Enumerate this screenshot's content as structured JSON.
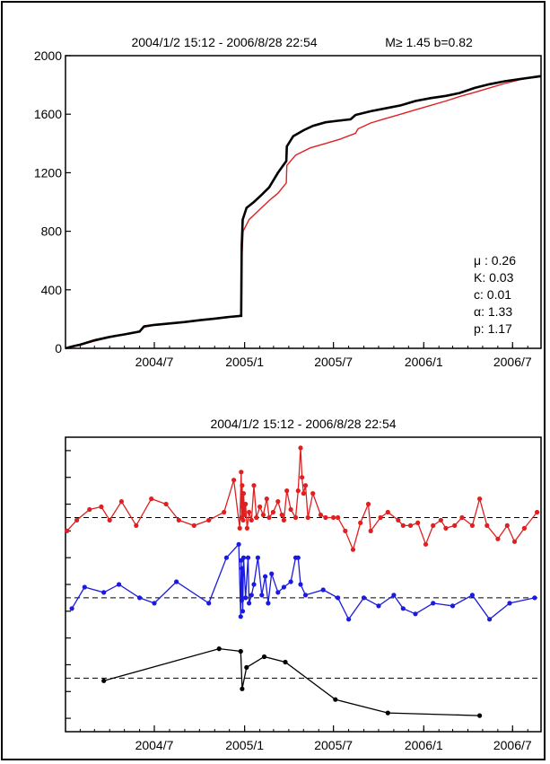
{
  "chart_data": [
    {
      "type": "line",
      "title": "2004/1/2 15:12  -  2006/8/28 22:54",
      "subtitle": "M≥ 1.45  b=0.82",
      "xlabel": "",
      "ylabel": "",
      "xlim": [
        "2004/1/2",
        "2006/8/28"
      ],
      "ylim": [
        0,
        2000
      ],
      "x_ticks": [
        "2004/7",
        "2005/1",
        "2005/7",
        "2006/1",
        "2006/7"
      ],
      "y_ticks": [
        "0",
        "400",
        "800",
        "1200",
        "1600",
        "2000"
      ],
      "grid": false,
      "colors": {
        "observed": "#000000",
        "model": "#e02020"
      },
      "annotations": [
        "μ : 0.26",
        "K: 0.03",
        "c: 0.01",
        "α: 1.33",
        "p: 1.17"
      ],
      "series": [
        {
          "color": "#000000",
          "points": [
            [
              "2004/1/2",
              0
            ],
            [
              "2004/1/15",
              12
            ],
            [
              "2004/2/1",
              25
            ],
            [
              "2004/3/1",
              55
            ],
            [
              "2004/4/1",
              78
            ],
            [
              "2004/5/1",
              95
            ],
            [
              "2004/6/1",
              115
            ],
            [
              "2004/6/10",
              150
            ],
            [
              "2004/7/1",
              160
            ],
            [
              "2004/8/1",
              170
            ],
            [
              "2004/9/1",
              180
            ],
            [
              "2004/10/1",
              192
            ],
            [
              "2004/11/1",
              203
            ],
            [
              "2004/12/1",
              215
            ],
            [
              "2004/12/25",
              222
            ],
            [
              "2004/12/26",
              700
            ],
            [
              "2004/12/28",
              880
            ],
            [
              "2005/1/5",
              960
            ],
            [
              "2005/1/20",
              1000
            ],
            [
              "2005/2/5",
              1050
            ],
            [
              "2005/2/20",
              1100
            ],
            [
              "2005/3/10",
              1200
            ],
            [
              "2005/3/27",
              1280
            ],
            [
              "2005/3/28",
              1380
            ],
            [
              "2005/4/10",
              1450
            ],
            [
              "2005/5/1",
              1490
            ],
            [
              "2005/5/20",
              1520
            ],
            [
              "2005/6/15",
              1545
            ],
            [
              "2005/7/10",
              1555
            ],
            [
              "2005/8/5",
              1565
            ],
            [
              "2005/8/15",
              1595
            ],
            [
              "2005/9/15",
              1620
            ],
            [
              "2005/10/15",
              1640
            ],
            [
              "2005/11/15",
              1660
            ],
            [
              "2005/12/15",
              1690
            ],
            [
              "2006/1/15",
              1710
            ],
            [
              "2006/2/15",
              1725
            ],
            [
              "2006/3/15",
              1745
            ],
            [
              "2006/4/15",
              1780
            ],
            [
              "2006/5/15",
              1805
            ],
            [
              "2006/6/15",
              1825
            ],
            [
              "2006/7/15",
              1840
            ],
            [
              "2006/8/28",
              1860
            ]
          ]
        },
        {
          "color": "#e02020",
          "points": [
            [
              "2004/1/2",
              0
            ],
            [
              "2004/2/1",
              22
            ],
            [
              "2004/3/1",
              50
            ],
            [
              "2004/4/1",
              75
            ],
            [
              "2004/5/1",
              95
            ],
            [
              "2004/6/1",
              115
            ],
            [
              "2004/6/10",
              145
            ],
            [
              "2004/7/1",
              158
            ],
            [
              "2004/8/1",
              168
            ],
            [
              "2004/9/1",
              180
            ],
            [
              "2004/10/1",
              190
            ],
            [
              "2004/11/1",
              202
            ],
            [
              "2004/12/1",
              215
            ],
            [
              "2004/12/25",
              225
            ],
            [
              "2004/12/26",
              600
            ],
            [
              "2004/12/29",
              800
            ],
            [
              "2005/1/10",
              880
            ],
            [
              "2005/2/1",
              950
            ],
            [
              "2005/2/20",
              1010
            ],
            [
              "2005/3/10",
              1060
            ],
            [
              "2005/3/27",
              1130
            ],
            [
              "2005/3/28",
              1250
            ],
            [
              "2005/4/15",
              1320
            ],
            [
              "2005/5/15",
              1370
            ],
            [
              "2005/6/15",
              1400
            ],
            [
              "2005/7/15",
              1430
            ],
            [
              "2005/8/15",
              1470
            ],
            [
              "2005/8/20",
              1500
            ],
            [
              "2005/9/15",
              1540
            ],
            [
              "2005/10/15",
              1570
            ],
            [
              "2005/11/15",
              1600
            ],
            [
              "2005/12/15",
              1630
            ],
            [
              "2006/1/15",
              1660
            ],
            [
              "2006/2/15",
              1690
            ],
            [
              "2006/3/15",
              1720
            ],
            [
              "2006/4/15",
              1750
            ],
            [
              "2006/5/15",
              1780
            ],
            [
              "2006/6/15",
              1810
            ],
            [
              "2006/7/15",
              1835
            ],
            [
              "2006/8/28",
              1865
            ]
          ]
        }
      ]
    },
    {
      "type": "line",
      "title": "2004/1/2 15:12  -  2006/8/28 22:54",
      "xlabel": "",
      "ylabel": "",
      "xlim": [
        "2004/1/2",
        "2006/8/28"
      ],
      "x_ticks": [
        "2004/7",
        "2005/1",
        "2005/7",
        "2006/1",
        "2006/7"
      ],
      "y_ticks_labeled": false,
      "y_tick_count": 11,
      "grid": false,
      "reference_lines": [
        {
          "level": 2.0,
          "style": "dashed"
        },
        {
          "level": 5.0,
          "style": "dashed"
        },
        {
          "level": 8.0,
          "style": "dashed"
        }
      ],
      "ylim": [
        0,
        11
      ],
      "series": [
        {
          "color": "#e02020",
          "points": [
            [
              "2004/1/5",
              7.5
            ],
            [
              "2004/1/25",
              7.9
            ],
            [
              "2004/2/20",
              8.3
            ],
            [
              "2004/3/15",
              8.4
            ],
            [
              "2004/4/1",
              7.9
            ],
            [
              "2004/4/25",
              8.6
            ],
            [
              "2004/5/25",
              7.7
            ],
            [
              "2004/6/25",
              8.7
            ],
            [
              "2004/7/25",
              8.5
            ],
            [
              "2004/8/20",
              7.9
            ],
            [
              "2004/9/20",
              7.7
            ],
            [
              "2004/10/20",
              7.9
            ],
            [
              "2004/11/20",
              8.2
            ],
            [
              "2004/12/10",
              9.4
            ],
            [
              "2004/12/22",
              7.6
            ],
            [
              "2004/12/25",
              9.7
            ],
            [
              "2004/12/26",
              8.0
            ],
            [
              "2004/12/27",
              9.2
            ],
            [
              "2004/12/28",
              8.4
            ],
            [
              "2004/12/29",
              7.9
            ],
            [
              "2004/12/30",
              8.9
            ],
            [
              "2005/1/1",
              8.1
            ],
            [
              "2005/1/3",
              8.5
            ],
            [
              "2005/1/6",
              7.6
            ],
            [
              "2005/1/10",
              8.2
            ],
            [
              "2005/1/15",
              7.9
            ],
            [
              "2005/1/20",
              9.2
            ],
            [
              "2005/1/25",
              8.0
            ],
            [
              "2005/2/1",
              8.4
            ],
            [
              "2005/2/8",
              8.1
            ],
            [
              "2005/2/15",
              8.7
            ],
            [
              "2005/2/20",
              8.0
            ],
            [
              "2005/2/28",
              8.2
            ],
            [
              "2005/3/10",
              8.6
            ],
            [
              "2005/3/18",
              8.1
            ],
            [
              "2005/3/22",
              7.9
            ],
            [
              "2005/3/28",
              9.0
            ],
            [
              "2005/4/5",
              8.3
            ],
            [
              "2005/4/15",
              8.0
            ],
            [
              "2005/4/20",
              9.0
            ],
            [
              "2005/4/25",
              10.6
            ],
            [
              "2005/4/28",
              9.5
            ],
            [
              "2005/5/1",
              8.9
            ],
            [
              "2005/5/5",
              9.2
            ],
            [
              "2005/5/10",
              8.0
            ],
            [
              "2005/5/20",
              8.9
            ],
            [
              "2005/6/5",
              8.1
            ],
            [
              "2005/6/15",
              8.0
            ],
            [
              "2005/7/1",
              8.0
            ],
            [
              "2005/7/10",
              8.0
            ],
            [
              "2005/7/25",
              7.5
            ],
            [
              "2005/8/10",
              6.8
            ],
            [
              "2005/8/25",
              7.8
            ],
            [
              "2005/9/10",
              8.5
            ],
            [
              "2005/9/15",
              7.5
            ],
            [
              "2005/10/5",
              8.0
            ],
            [
              "2005/10/20",
              8.2
            ],
            [
              "2005/11/10",
              7.9
            ],
            [
              "2005/11/20",
              7.7
            ],
            [
              "2005/12/5",
              7.7
            ],
            [
              "2005/12/20",
              7.8
            ],
            [
              "2006/1/5",
              7.0
            ],
            [
              "2006/1/20",
              7.7
            ],
            [
              "2006/2/5",
              7.9
            ],
            [
              "2006/2/15",
              7.6
            ],
            [
              "2006/3/5",
              7.7
            ],
            [
              "2006/3/20",
              8.0
            ],
            [
              "2006/4/10",
              7.7
            ],
            [
              "2006/4/25",
              8.7
            ],
            [
              "2006/5/10",
              7.7
            ],
            [
              "2006/6/1",
              7.2
            ],
            [
              "2006/6/20",
              7.7
            ],
            [
              "2006/7/5",
              7.1
            ],
            [
              "2006/7/25",
              7.6
            ],
            [
              "2006/8/20",
              8.2
            ]
          ]
        },
        {
          "color": "#1a1ae0",
          "points": [
            [
              "2004/1/15",
              4.6
            ],
            [
              "2004/2/10",
              5.4
            ],
            [
              "2004/3/20",
              5.2
            ],
            [
              "2004/4/20",
              5.5
            ],
            [
              "2004/6/1",
              5.0
            ],
            [
              "2004/7/1",
              4.8
            ],
            [
              "2004/8/15",
              5.6
            ],
            [
              "2004/10/20",
              4.8
            ],
            [
              "2004/11/25",
              6.5
            ],
            [
              "2004/12/20",
              7.0
            ],
            [
              "2004/12/24",
              4.3
            ],
            [
              "2004/12/25",
              6.4
            ],
            [
              "2004/12/26",
              4.9
            ],
            [
              "2004/12/27",
              6.1
            ],
            [
              "2004/12/28",
              4.5
            ],
            [
              "2004/12/30",
              6.5
            ],
            [
              "2005/1/3",
              5.0
            ],
            [
              "2005/1/8",
              6.5
            ],
            [
              "2005/1/10",
              4.8
            ],
            [
              "2005/1/15",
              5.1
            ],
            [
              "2005/1/20",
              5.5
            ],
            [
              "2005/1/28",
              6.5
            ],
            [
              "2005/2/5",
              5.1
            ],
            [
              "2005/2/12",
              5.8
            ],
            [
              "2005/2/18",
              4.8
            ],
            [
              "2005/2/25",
              5.9
            ],
            [
              "2005/3/10",
              5.2
            ],
            [
              "2005/3/22",
              5.4
            ],
            [
              "2005/4/5",
              5.6
            ],
            [
              "2005/4/15",
              6.5
            ],
            [
              "2005/4/20",
              6.5
            ],
            [
              "2005/4/25",
              5.5
            ],
            [
              "2005/5/5",
              5.1
            ],
            [
              "2005/6/10",
              5.3
            ],
            [
              "2005/7/10",
              5.0
            ],
            [
              "2005/8/1",
              4.2
            ],
            [
              "2005/9/1",
              5.0
            ],
            [
              "2005/10/1",
              4.7
            ],
            [
              "2005/11/1",
              5.1
            ],
            [
              "2005/11/20",
              4.6
            ],
            [
              "2005/12/15",
              4.4
            ],
            [
              "2006/1/20",
              4.8
            ],
            [
              "2006/3/1",
              4.7
            ],
            [
              "2006/4/10",
              5.1
            ],
            [
              "2006/5/15",
              4.2
            ],
            [
              "2006/6/25",
              4.8
            ],
            [
              "2006/8/15",
              5.0
            ]
          ]
        },
        {
          "color": "#000000",
          "points": [
            [
              "2004/3/20",
              1.9
            ],
            [
              "2004/11/10",
              3.1
            ],
            [
              "2004/12/24",
              3.0
            ],
            [
              "2004/12/27",
              1.6
            ],
            [
              "2005/1/5",
              2.4
            ],
            [
              "2005/2/10",
              2.8
            ],
            [
              "2005/3/25",
              2.6
            ],
            [
              "2005/7/5",
              1.2
            ],
            [
              "2005/10/20",
              0.7
            ],
            [
              "2006/4/25",
              0.6
            ]
          ]
        }
      ]
    }
  ]
}
